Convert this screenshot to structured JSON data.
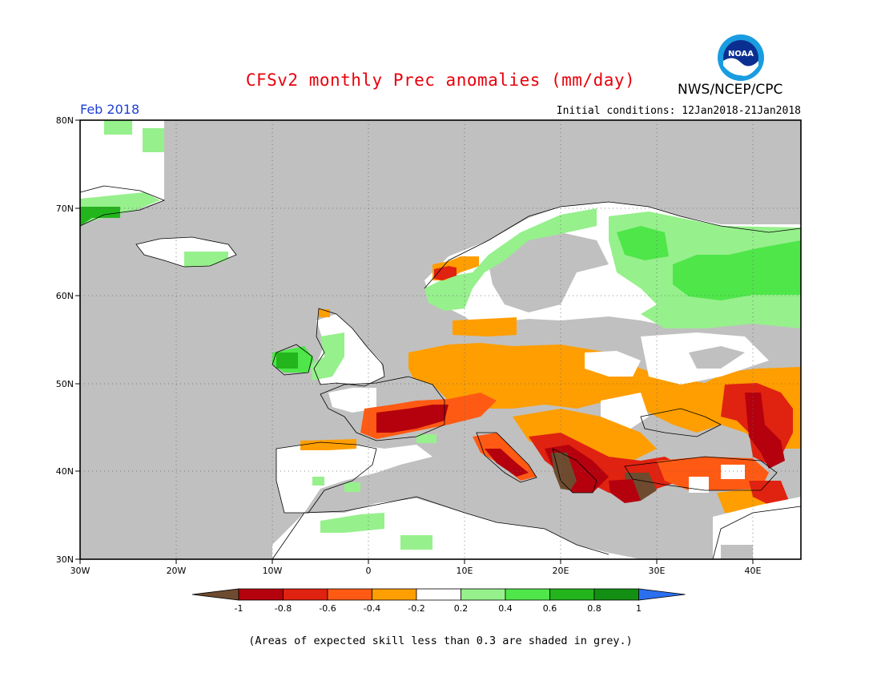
{
  "header": {
    "title": "CFSv2 monthly Prec anomalies (mm/day)",
    "agency": "NWS/NCEP/CPC",
    "logo_text": "NOAA",
    "month": "Feb 2018",
    "initial_conditions": "Initial conditions: 12Jan2018-21Jan2018"
  },
  "map": {
    "lon_range": [
      -30,
      45
    ],
    "lat_range": [
      30,
      80
    ],
    "lat_labels": [
      "80N",
      "70N",
      "60N",
      "50N",
      "40N",
      "30N"
    ],
    "lon_labels": [
      "30W",
      "20W",
      "10W",
      "0",
      "10E",
      "20E",
      "30E",
      "40E"
    ],
    "no_skill_color": "#c0c0c0"
  },
  "legend": {
    "labels": [
      "-1",
      "-0.8",
      "-0.6",
      "-0.4",
      "-0.2",
      "0.2",
      "0.4",
      "0.6",
      "0.8",
      "1"
    ],
    "colors": [
      "#6e4b2f",
      "#b5000e",
      "#e02210",
      "#ff5a14",
      "#ff9e00",
      "#ffffff",
      "#96f08c",
      "#4fe64a",
      "#23b51c",
      "#138f14",
      "#2b6ff0"
    ]
  },
  "footnote": "(Areas of expected skill less than 0.3 are shaded in grey.)"
}
